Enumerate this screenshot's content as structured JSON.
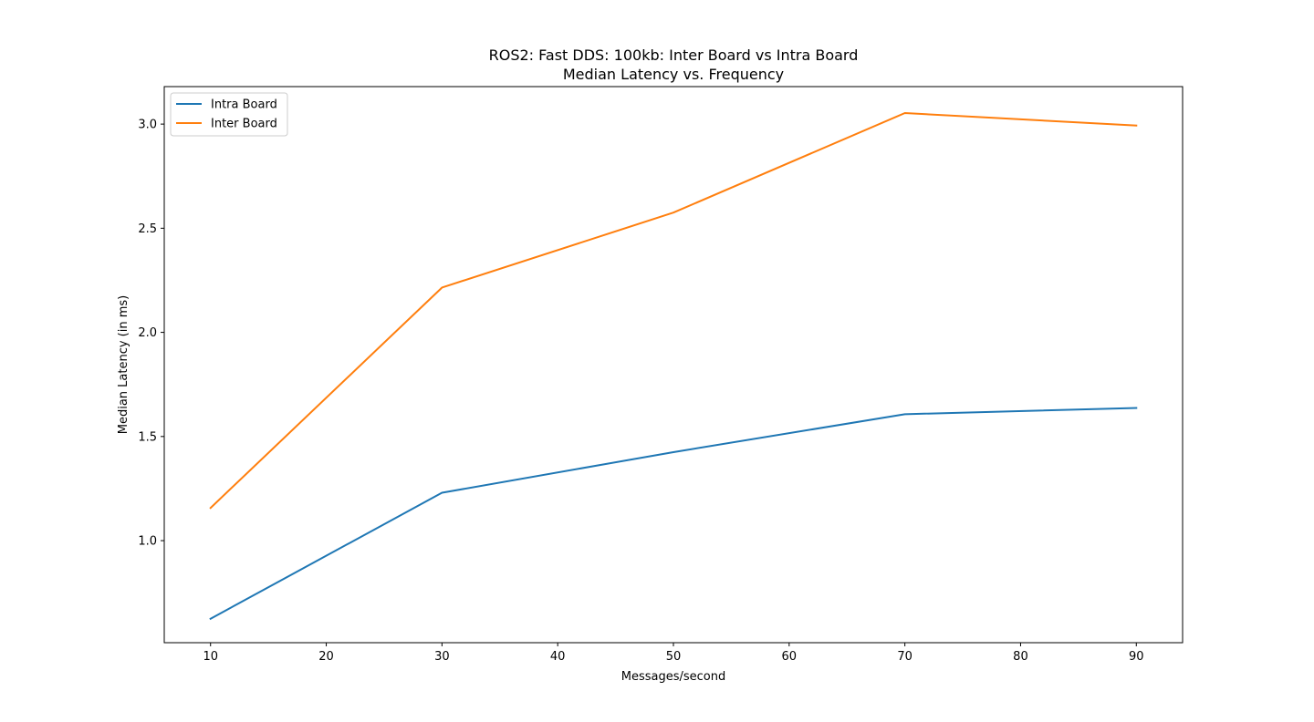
{
  "chart_data": {
    "type": "line",
    "title": "ROS2: Fast DDS: 100kb: Inter Board vs Intra Board",
    "subtitle": "Median Latency vs. Frequency",
    "xlabel": "Messages/second",
    "ylabel": "Median Latency (in ms)",
    "xlim": [
      6,
      94
    ],
    "ylim": [
      0.51,
      3.18
    ],
    "x_ticks": [
      10,
      20,
      30,
      40,
      50,
      60,
      70,
      80,
      90
    ],
    "y_ticks": [
      1.0,
      1.5,
      2.0,
      2.5,
      3.0
    ],
    "x_tick_labels": [
      "10",
      "20",
      "30",
      "40",
      "50",
      "60",
      "70",
      "80",
      "90"
    ],
    "y_tick_labels": [
      "1.0",
      "1.5",
      "2.0",
      "2.5",
      "3.0"
    ],
    "grid": false,
    "legend_position": "top-left",
    "x": [
      10,
      30,
      50,
      70,
      90
    ],
    "series": [
      {
        "name": "Intra Board",
        "color": "#1f77b4",
        "values": [
          0.625,
          1.23,
          1.425,
          1.607,
          1.637
        ]
      },
      {
        "name": "Inter Board",
        "color": "#ff7f0e",
        "values": [
          1.157,
          2.215,
          2.575,
          3.053,
          2.993
        ]
      }
    ]
  }
}
